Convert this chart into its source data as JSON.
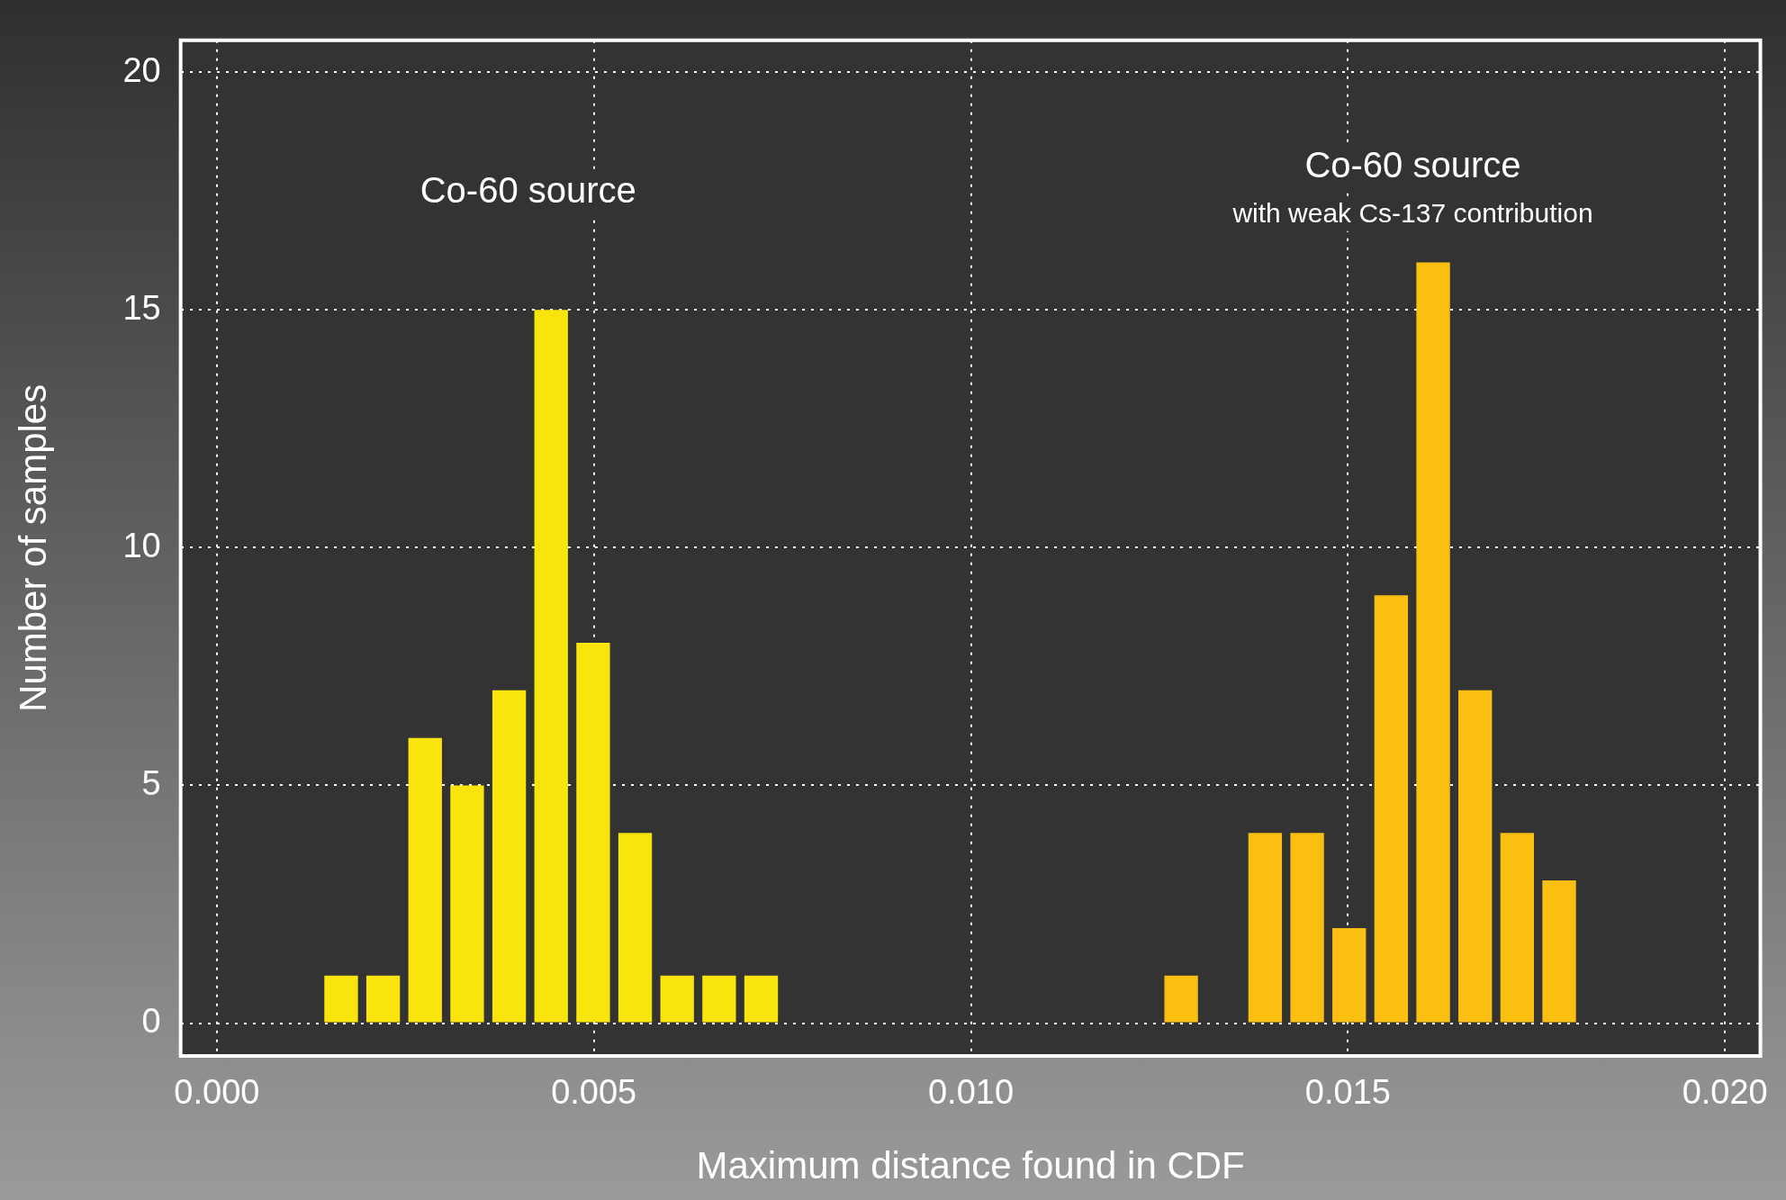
{
  "chart_data": {
    "type": "histogram",
    "xlabel": "Maximum distance found in CDF",
    "ylabel": "Number of samples",
    "bins": [
      0.00137,
      0.001927,
      0.002484,
      0.003041,
      0.003598,
      0.004155,
      0.004712,
      0.005269,
      0.005826,
      0.006383,
      0.00694,
      0.007497,
      0.008054,
      0.008611,
      0.009168,
      0.009725,
      0.010282,
      0.010839,
      0.011396,
      0.011953,
      0.01251,
      0.013067,
      0.013624,
      0.014181,
      0.014738,
      0.015295,
      0.015852,
      0.016409,
      0.016966,
      0.017523,
      0.01808
    ],
    "series": [
      {
        "color": "#f9e50c",
        "values": [
          1,
          1,
          6,
          5,
          7,
          15,
          8,
          4,
          1,
          1,
          1,
          null,
          null,
          null,
          null,
          null,
          null,
          null,
          null,
          null,
          null,
          null,
          null,
          null,
          null,
          null,
          null,
          null,
          null,
          null
        ]
      },
      {
        "color": "#fbbf12",
        "values": [
          null,
          null,
          null,
          null,
          null,
          null,
          null,
          null,
          null,
          null,
          null,
          null,
          null,
          null,
          null,
          null,
          null,
          null,
          null,
          null,
          1,
          0,
          4,
          4,
          2,
          9,
          16,
          7,
          4,
          3
        ]
      }
    ],
    "annotations": [
      "Co-60 source",
      "Co-60 source",
      "with weak Cs-137 contribution"
    ],
    "xlim": [
      -0.00048,
      0.02047
    ],
    "ylim": [
      -0.69,
      20.67
    ],
    "xticks": [
      {
        "value": 0,
        "label": "0.000"
      },
      {
        "value": 0.005,
        "label": "0.005"
      },
      {
        "value": 0.01,
        "label": "0.010"
      },
      {
        "value": 0.015,
        "label": "0.015"
      },
      {
        "value": 0.02,
        "label": "0.020"
      }
    ],
    "yticks": [
      0,
      5,
      10,
      15,
      20
    ],
    "grid": true,
    "legend": false
  }
}
